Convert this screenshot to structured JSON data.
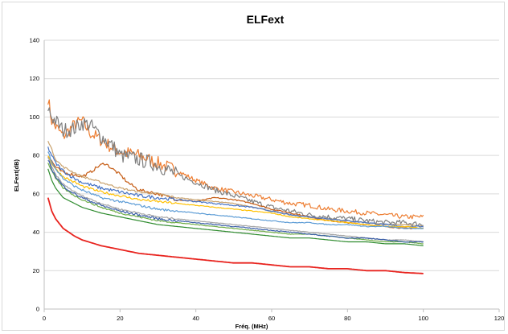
{
  "chart_data": {
    "type": "line",
    "title": "ELFext",
    "xlabel": "Fréq. (MHz)",
    "ylabel": "ELFext(dB)",
    "xlim": [
      0,
      120
    ],
    "ylim": [
      0,
      140
    ],
    "xticks": [
      0,
      20,
      40,
      60,
      80,
      100,
      120
    ],
    "yticks": [
      0,
      20,
      40,
      60,
      80,
      100,
      120,
      140
    ],
    "grid": "horizontal",
    "legend": "none",
    "series": [
      {
        "color": "#ed7d31",
        "noise": 3.5,
        "x": [
          1,
          2,
          3,
          5,
          8,
          10,
          12,
          15,
          18,
          20,
          25,
          30,
          35,
          40,
          45,
          50,
          55,
          60,
          65,
          70,
          75,
          80,
          85,
          90,
          95,
          100
        ],
        "y": [
          110,
          98,
          95,
          90,
          96,
          98,
          92,
          88,
          84,
          82,
          80,
          76,
          72,
          67,
          63,
          61,
          59,
          57,
          55,
          54,
          52,
          51,
          50,
          49,
          48,
          48
        ]
      },
      {
        "color": "#7f7f7f",
        "noise": 4,
        "x": [
          1,
          2,
          3,
          5,
          8,
          10,
          12,
          15,
          18,
          20,
          25,
          30,
          35,
          40,
          45,
          50,
          55,
          60,
          65,
          70,
          75,
          80,
          85,
          90,
          95,
          100
        ],
        "y": [
          105,
          100,
          98,
          93,
          94,
          97,
          96,
          90,
          85,
          80,
          78,
          75,
          70,
          66,
          62,
          59,
          56,
          53,
          51,
          49,
          48,
          47,
          46,
          45,
          45,
          44
        ]
      },
      {
        "color": "#c55a11",
        "noise": 0.8,
        "x": [
          1,
          3,
          5,
          8,
          10,
          12,
          14,
          16,
          18,
          20,
          22,
          25,
          30,
          35,
          40,
          45,
          50,
          55,
          60,
          65,
          70,
          75,
          80,
          85,
          90,
          95,
          100
        ],
        "y": [
          80,
          74,
          71,
          70,
          69,
          71,
          74,
          76,
          73,
          70,
          66,
          62,
          60,
          57,
          56,
          58,
          57,
          55,
          52,
          50,
          48,
          46,
          45,
          44,
          43,
          42,
          42
        ]
      },
      {
        "color": "#c9a26d",
        "noise": 0.5,
        "x": [
          1,
          2,
          3,
          5,
          8,
          10,
          15,
          20,
          25,
          30,
          35,
          40,
          45,
          50,
          55,
          60,
          65,
          70,
          75,
          80,
          85,
          90,
          95,
          100
        ],
        "y": [
          88,
          83,
          78,
          74,
          71,
          69,
          66,
          63,
          61,
          60,
          58,
          57,
          56,
          55,
          53,
          51,
          49,
          48,
          47,
          46,
          45,
          44,
          44,
          43
        ]
      },
      {
        "color": "#4472c4",
        "noise": 0.9,
        "x": [
          1,
          2,
          3,
          5,
          8,
          10,
          15,
          20,
          25,
          30,
          35,
          40,
          45,
          50,
          55,
          60,
          65,
          70,
          75,
          80,
          85,
          90,
          95,
          100
        ],
        "y": [
          84,
          80,
          76,
          72,
          68,
          66,
          63,
          61,
          59,
          58,
          57,
          56,
          55,
          54,
          53,
          51,
          49,
          48,
          47,
          46,
          45,
          44,
          43,
          43
        ]
      },
      {
        "color": "#ffc000",
        "noise": 0.6,
        "x": [
          1,
          2,
          3,
          5,
          8,
          10,
          15,
          20,
          25,
          30,
          35,
          40,
          45,
          50,
          55,
          60,
          65,
          70,
          75,
          80,
          85,
          90,
          95,
          100
        ],
        "y": [
          80,
          76,
          73,
          69,
          66,
          64,
          61,
          59,
          57,
          56,
          55,
          54,
          53,
          52,
          51,
          50,
          48,
          47,
          46,
          45,
          44,
          43,
          43,
          42
        ]
      },
      {
        "color": "#5b9bd5",
        "noise": 0.6,
        "x": [
          1,
          2,
          3,
          5,
          8,
          10,
          15,
          20,
          25,
          30,
          35,
          40,
          45,
          50,
          55,
          60,
          65,
          70,
          75,
          80,
          85,
          90,
          95,
          100
        ],
        "y": [
          82,
          77,
          73,
          68,
          64,
          62,
          58,
          56,
          54,
          52,
          51,
          50,
          49,
          48,
          47,
          46,
          45,
          45,
          44,
          44,
          43,
          43,
          42,
          42
        ]
      },
      {
        "color": "#70ad47",
        "noise": 0.4,
        "x": [
          1,
          2,
          3,
          5,
          8,
          10,
          15,
          20,
          25,
          30,
          35,
          40,
          45,
          50,
          55,
          60,
          65,
          70,
          75,
          80,
          85,
          90,
          95,
          100
        ],
        "y": [
          76,
          72,
          68,
          63,
          59,
          57,
          53,
          50,
          48,
          46,
          45,
          44,
          43,
          42,
          41,
          40,
          39,
          39,
          38,
          37,
          36,
          35,
          35,
          34
        ]
      },
      {
        "color": "#a5a5a5",
        "noise": 0.4,
        "x": [
          1,
          2,
          3,
          5,
          8,
          10,
          15,
          20,
          25,
          30,
          35,
          40,
          45,
          50,
          55,
          60,
          65,
          70,
          75,
          80,
          85,
          90,
          95,
          100
        ],
        "y": [
          79,
          74,
          70,
          65,
          61,
          59,
          55,
          52,
          50,
          48,
          47,
          46,
          45,
          44,
          43,
          42,
          41,
          40,
          39,
          38,
          37,
          36,
          36,
          35
        ]
      },
      {
        "color": "#3a5ea8",
        "noise": 0.6,
        "x": [
          1,
          2,
          3,
          5,
          8,
          10,
          15,
          20,
          25,
          30,
          35,
          40,
          45,
          50,
          55,
          60,
          65,
          70,
          75,
          80,
          85,
          90,
          95,
          100
        ],
        "y": [
          78,
          73,
          69,
          64,
          60,
          58,
          54,
          51,
          49,
          47,
          46,
          45,
          44,
          43,
          42,
          41,
          40,
          39,
          38,
          37,
          37,
          36,
          35,
          35
        ]
      },
      {
        "color": "#2e8b2e",
        "noise": 0,
        "x": [
          1,
          2,
          3,
          5,
          8,
          10,
          15,
          20,
          25,
          30,
          35,
          40,
          45,
          50,
          55,
          60,
          65,
          70,
          75,
          80,
          85,
          90,
          95,
          100
        ],
        "y": [
          73,
          67,
          63,
          58,
          55,
          53,
          50,
          48,
          46,
          44,
          43,
          42,
          41,
          40,
          39,
          38,
          37,
          37,
          36,
          35,
          35,
          34,
          34,
          33
        ]
      },
      {
        "color": "#e8231e",
        "noise": 0,
        "x": [
          1,
          2,
          3,
          5,
          8,
          10,
          15,
          20,
          25,
          30,
          35,
          40,
          45,
          50,
          55,
          60,
          65,
          70,
          75,
          80,
          85,
          90,
          95,
          100
        ],
        "y": [
          58,
          51,
          47,
          42,
          38,
          36,
          33,
          31,
          29,
          28,
          27,
          26,
          25,
          24,
          24,
          23,
          22,
          22,
          21,
          21,
          20,
          20,
          19,
          18.5
        ]
      }
    ]
  }
}
